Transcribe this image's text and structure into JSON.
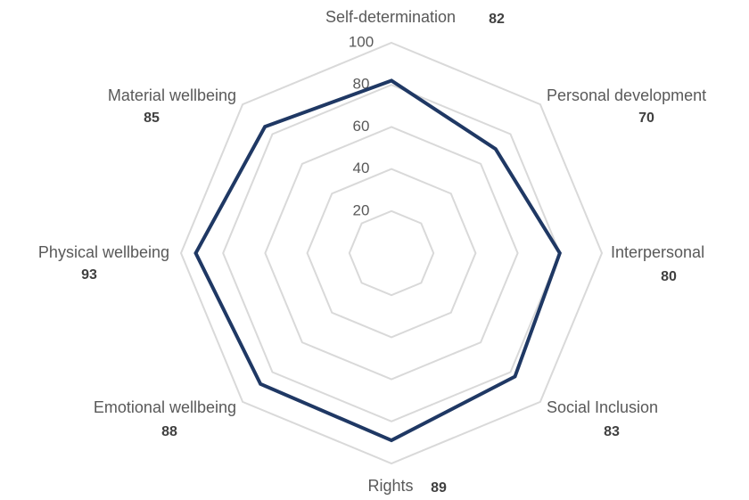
{
  "chart_data": {
    "type": "radar",
    "categories": [
      "Self-determination",
      "Personal development",
      "Interpersonal",
      "Social Inclusion",
      "Rights",
      "Emotional wellbeing",
      "Physical wellbeing",
      "Material wellbeing"
    ],
    "values": [
      82,
      70,
      80,
      83,
      89,
      88,
      93,
      85
    ],
    "color": "#1f3864",
    "ylim": [
      0,
      100
    ],
    "yticks": [
      20,
      40,
      60,
      80,
      100
    ],
    "grid": true
  }
}
